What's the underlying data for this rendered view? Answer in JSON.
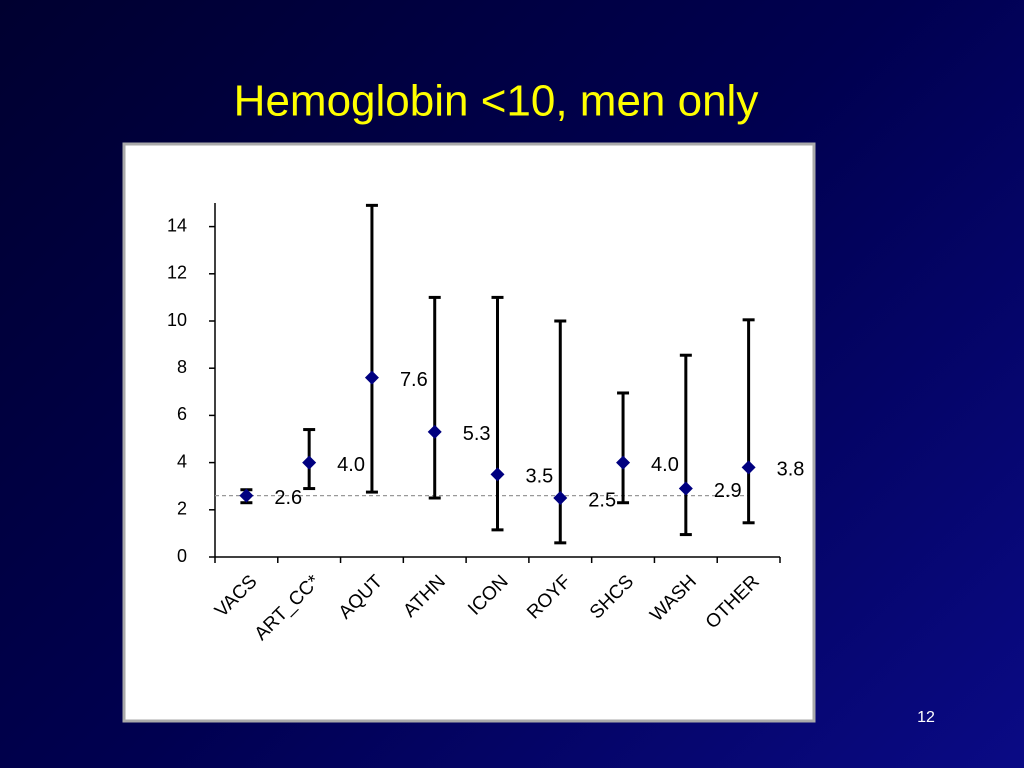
{
  "title": "Hemoglobin <10, men only",
  "slide_number": "12",
  "chart_data": {
    "type": "errorpoint",
    "categories": [
      "VACS",
      "ART_CC*",
      "AQUT",
      "ATHN",
      "ICON",
      "ROYF",
      "SHCS",
      "WASH",
      "OTHER"
    ],
    "values": [
      2.6,
      4.0,
      7.6,
      5.3,
      3.5,
      2.5,
      4.0,
      2.9,
      3.8
    ],
    "value_labels": [
      "2.6",
      "4.0",
      "7.6",
      "5.3",
      "3.5",
      "2.5",
      "4.0",
      "2.9",
      "3.8"
    ],
    "low": [
      2.3,
      2.9,
      2.75,
      2.5,
      1.15,
      0.6,
      2.3,
      0.95,
      1.45
    ],
    "high": [
      2.85,
      5.4,
      14.9,
      11.0,
      11.0,
      10.0,
      6.95,
      8.55,
      10.05
    ],
    "reference_line": 2.6,
    "color": "#000080",
    "ylim": [
      0,
      15
    ],
    "yticks": [
      0,
      2,
      4,
      6,
      8,
      10,
      12,
      14
    ]
  }
}
